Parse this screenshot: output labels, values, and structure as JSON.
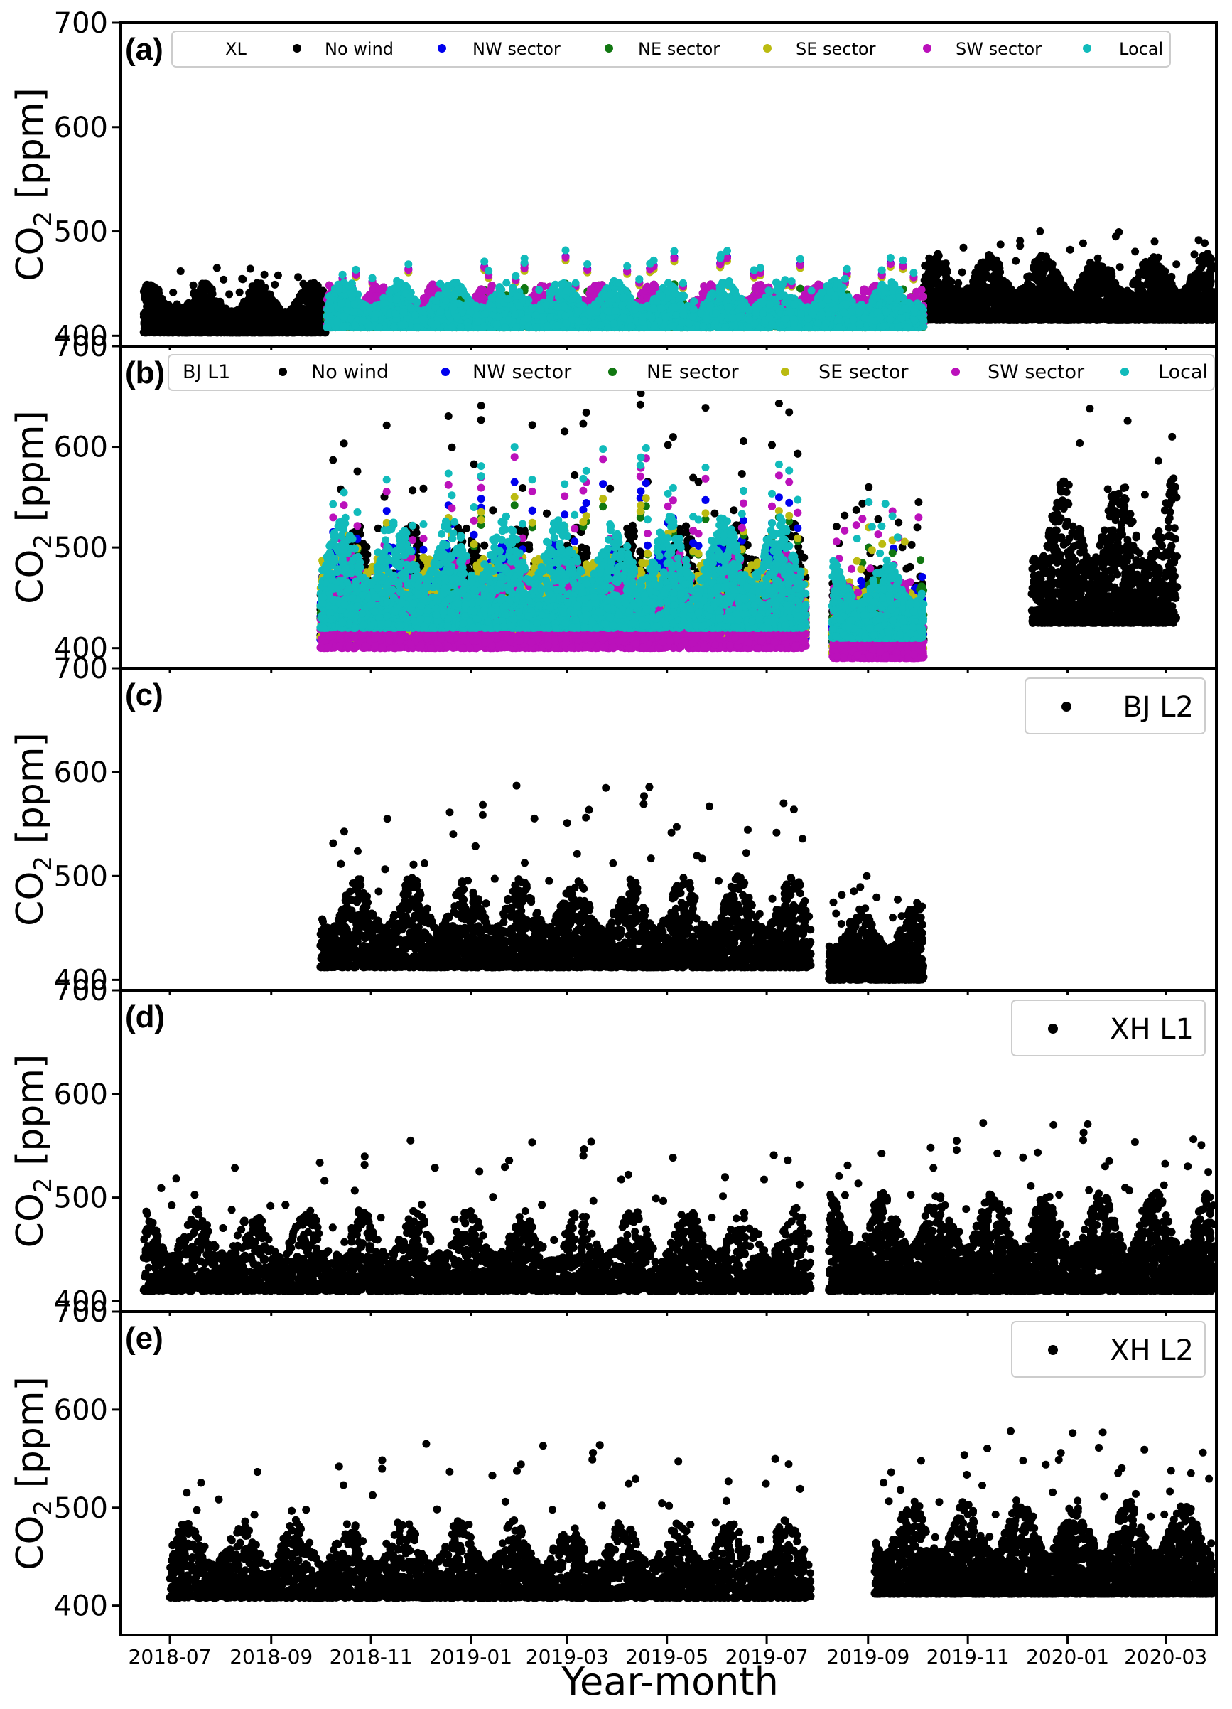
{
  "figure": {
    "xlabel": "Year-month",
    "ylabel_text": "CO",
    "ylabel_sub": "2",
    "ylabel_unit": " [ppm]"
  },
  "x_ticks": [
    {
      "date": "2018-07-01",
      "label": "2018-07"
    },
    {
      "date": "2018-09-01",
      "label": "2018-09"
    },
    {
      "date": "2018-11-01",
      "label": "2018-11"
    },
    {
      "date": "2019-01-01",
      "label": "2019-01"
    },
    {
      "date": "2019-03-01",
      "label": "2019-03"
    },
    {
      "date": "2019-05-01",
      "label": "2019-05"
    },
    {
      "date": "2019-07-01",
      "label": "2019-07"
    },
    {
      "date": "2019-09-01",
      "label": "2019-09"
    },
    {
      "date": "2019-11-01",
      "label": "2019-11"
    },
    {
      "date": "2020-01-01",
      "label": "2020-01"
    },
    {
      "date": "2020-03-01",
      "label": "2020-03"
    }
  ],
  "colors": {
    "No wind": "#000000",
    "NW sector": "#0000ee",
    "NE sector": "#117711",
    "SE sector": "#bbbb11",
    "SW sector": "#bb11bb",
    "Local": "#11bbbb"
  },
  "chart_data": [
    {
      "type": "scatter",
      "panel_label": "(a)",
      "site": "XL",
      "xlim": [
        "2018-06-01",
        "2020-04-01"
      ],
      "ylim": [
        390,
        700
      ],
      "yticks": [
        400,
        500,
        600,
        700
      ],
      "ylabel": "CO2 [ppm]",
      "legend": {
        "placement": "top",
        "title": "XL",
        "entries": [
          "No wind",
          "NW sector",
          "NE sector",
          "SE sector",
          "SW sector",
          "Local"
        ]
      },
      "series": [
        {
          "name": "No wind",
          "segments": [
            {
              "start": "2018-06-15",
              "end": "2018-10-05",
              "base": 403,
              "amp": 30,
              "peak": 465
            },
            {
              "start": "2019-10-05",
              "end": "2020-03-31",
              "base": 415,
              "amp": 40,
              "peak": 500
            }
          ]
        },
        {
          "name": "NW sector",
          "segments": [
            {
              "start": "2018-10-05",
              "end": "2019-10-05",
              "base": 410,
              "amp": 25,
              "peak": 476
            }
          ]
        },
        {
          "name": "NE sector",
          "segments": [
            {
              "start": "2018-10-05",
              "end": "2019-10-05",
              "base": 408,
              "amp": 20,
              "peak": 450
            }
          ]
        },
        {
          "name": "SE sector",
          "segments": [
            {
              "start": "2018-10-05",
              "end": "2019-10-05",
              "base": 410,
              "amp": 25,
              "peak": 472
            }
          ]
        },
        {
          "name": "SW sector",
          "segments": [
            {
              "start": "2018-10-05",
              "end": "2019-10-05",
              "base": 410,
              "amp": 25,
              "peak": 475
            }
          ]
        },
        {
          "name": "Local",
          "segments": [
            {
              "start": "2018-10-05",
              "end": "2019-10-05",
              "base": 408,
              "amp": 28,
              "peak": 482
            }
          ]
        }
      ]
    },
    {
      "type": "scatter",
      "panel_label": "(b)",
      "site": "BJ L1",
      "xlim": [
        "2018-06-01",
        "2020-04-01"
      ],
      "ylim": [
        380,
        700
      ],
      "yticks": [
        400,
        500,
        600,
        700
      ],
      "ylabel": "CO2 [ppm]",
      "legend": {
        "placement": "top",
        "title": "BJ L1",
        "entries": [
          "No wind",
          "NW sector",
          "NE sector",
          "SE sector",
          "SW sector",
          "Local"
        ]
      },
      "series": [
        {
          "name": "No wind",
          "segments": [
            {
              "start": "2018-10-01",
              "end": "2019-07-25",
              "base": 412,
              "amp": 70,
              "peak": 668
            },
            {
              "start": "2019-08-10",
              "end": "2019-10-05",
              "base": 405,
              "amp": 50,
              "peak": 560
            },
            {
              "start": "2019-12-10",
              "end": "2020-03-08",
              "base": 425,
              "amp": 90,
              "peak": 638
            }
          ]
        },
        {
          "name": "NW sector",
          "segments": [
            {
              "start": "2018-10-01",
              "end": "2019-07-25",
              "base": 408,
              "amp": 60,
              "peak": 565
            },
            {
              "start": "2019-08-10",
              "end": "2019-10-05",
              "base": 400,
              "amp": 40,
              "peak": 500
            }
          ]
        },
        {
          "name": "NE sector",
          "segments": [
            {
              "start": "2018-10-01",
              "end": "2019-07-25",
              "base": 420,
              "amp": 30,
              "peak": 542
            },
            {
              "start": "2019-08-10",
              "end": "2019-10-05",
              "base": 405,
              "amp": 40,
              "peak": 500
            }
          ]
        },
        {
          "name": "SE sector",
          "segments": [
            {
              "start": "2018-10-01",
              "end": "2019-07-25",
              "base": 410,
              "amp": 50,
              "peak": 550
            },
            {
              "start": "2019-08-10",
              "end": "2019-10-05",
              "base": 395,
              "amp": 40,
              "peak": 520
            }
          ]
        },
        {
          "name": "SW sector",
          "segments": [
            {
              "start": "2018-10-01",
              "end": "2019-07-25",
              "base": 400,
              "amp": 60,
              "peak": 590
            },
            {
              "start": "2019-08-10",
              "end": "2019-10-05",
              "base": 390,
              "amp": 50,
              "peak": 545
            }
          ]
        },
        {
          "name": "Local",
          "segments": [
            {
              "start": "2018-10-01",
              "end": "2019-07-25",
              "base": 420,
              "amp": 70,
              "peak": 600
            },
            {
              "start": "2019-08-10",
              "end": "2019-10-05",
              "base": 410,
              "amp": 50,
              "peak": 545
            }
          ]
        }
      ]
    },
    {
      "type": "scatter",
      "panel_label": "(c)",
      "site": "BJ L2",
      "xlim": [
        "2018-06-01",
        "2020-04-01"
      ],
      "ylim": [
        390,
        700
      ],
      "yticks": [
        400,
        500,
        600,
        700
      ],
      "ylabel": "CO2 [ppm]",
      "legend": {
        "placement": "top-right",
        "entries": [
          "BJ L2"
        ]
      },
      "series": [
        {
          "name": "BJ L2",
          "segments": [
            {
              "start": "2018-10-01",
              "end": "2019-07-28",
              "base": 412,
              "amp": 55,
              "peak": 587
            },
            {
              "start": "2019-08-08",
              "end": "2019-10-05",
              "base": 400,
              "amp": 45,
              "peak": 500
            }
          ]
        }
      ]
    },
    {
      "type": "scatter",
      "panel_label": "(d)",
      "site": "XH L1",
      "xlim": [
        "2018-06-01",
        "2020-04-01"
      ],
      "ylim": [
        390,
        700
      ],
      "yticks": [
        400,
        500,
        600,
        700
      ],
      "ylabel": "CO2 [ppm]",
      "legend": {
        "placement": "top-right",
        "entries": [
          "XH L1"
        ]
      },
      "series": [
        {
          "name": "XH L1",
          "segments": [
            {
              "start": "2018-06-15",
              "end": "2019-07-28",
              "base": 410,
              "amp": 50,
              "peak": 555
            },
            {
              "start": "2019-08-08",
              "end": "2020-03-31",
              "base": 410,
              "amp": 60,
              "peak": 572
            }
          ]
        }
      ]
    },
    {
      "type": "scatter",
      "panel_label": "(e)",
      "site": "XH L2",
      "xlim": [
        "2018-06-01",
        "2020-04-01"
      ],
      "ylim": [
        370,
        700
      ],
      "yticks": [
        400,
        500,
        600,
        700
      ],
      "ylabel": "CO2 [ppm]",
      "xlabel": "Year-month",
      "legend": {
        "placement": "top-right",
        "entries": [
          "XH L2"
        ]
      },
      "series": [
        {
          "name": "XH L2",
          "segments": [
            {
              "start": "2018-07-01",
              "end": "2019-07-28",
              "base": 408,
              "amp": 50,
              "peak": 565
            },
            {
              "start": "2019-09-05",
              "end": "2020-03-31",
              "base": 412,
              "amp": 60,
              "peak": 578
            }
          ]
        }
      ]
    }
  ]
}
